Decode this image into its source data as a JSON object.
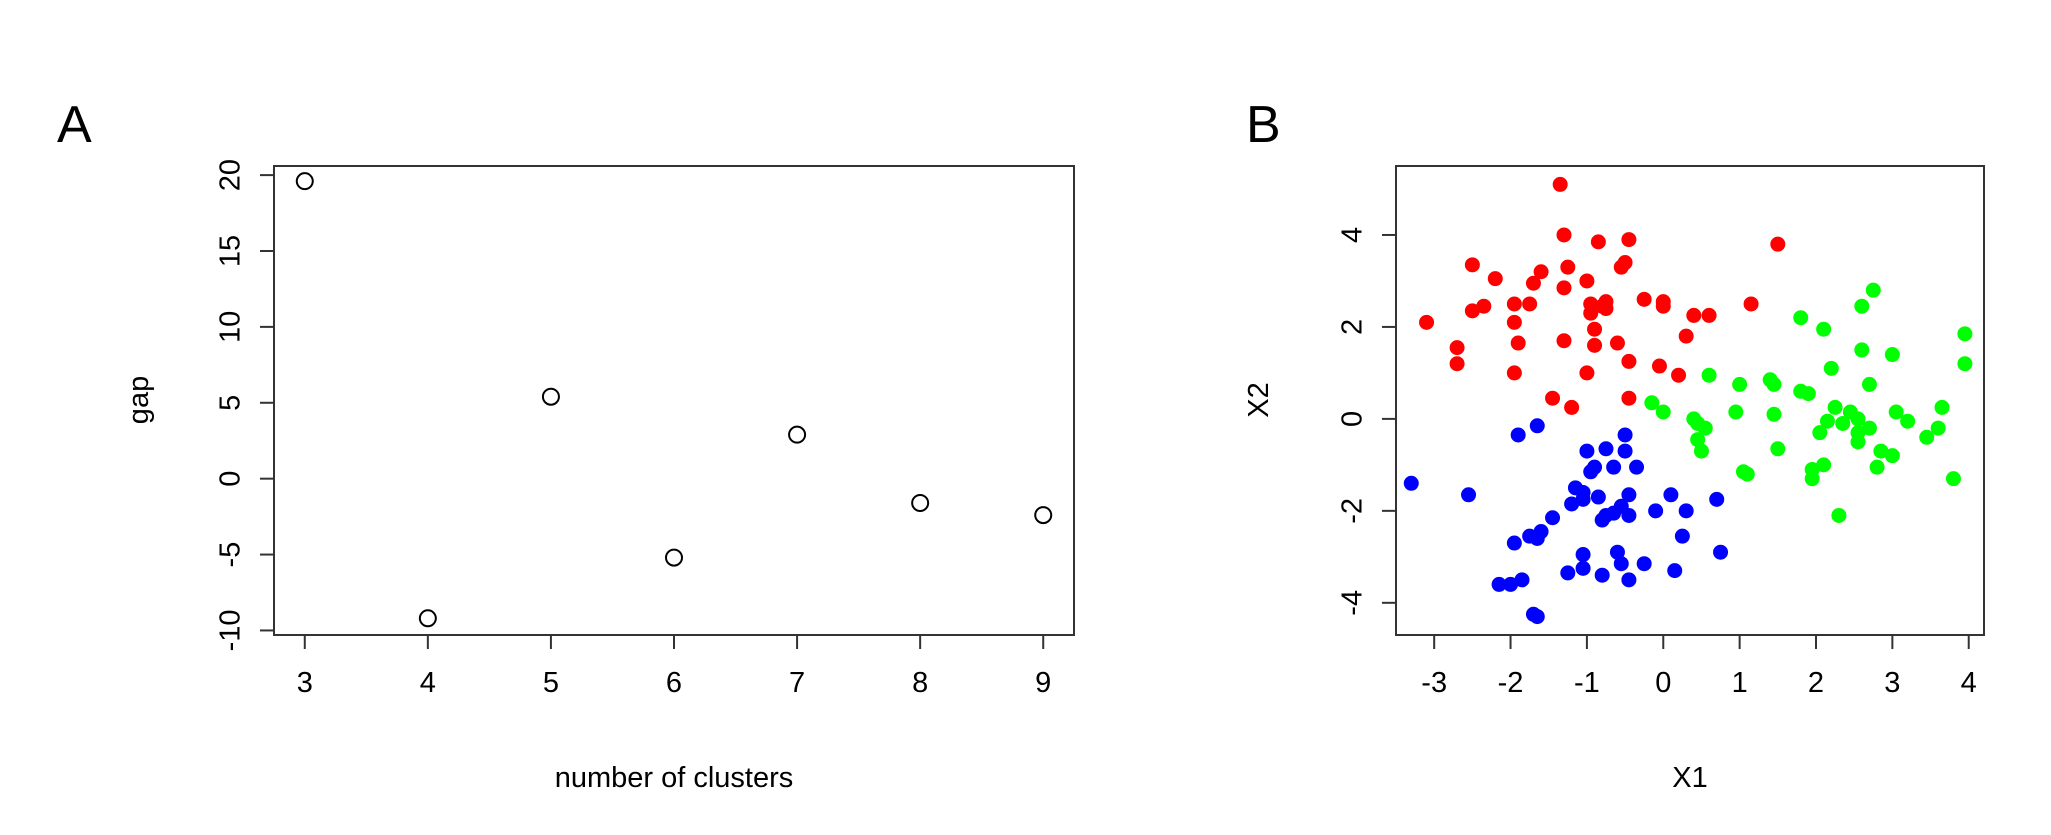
{
  "chart_data": [
    {
      "panel": "A",
      "type": "scatter",
      "xlabel": "number of clusters",
      "ylabel": "gap",
      "xticks": [
        3,
        4,
        5,
        6,
        7,
        8,
        9
      ],
      "yticks": [
        -10,
        -5,
        0,
        5,
        10,
        15,
        20
      ],
      "xlim": [
        2.75,
        9.25
      ],
      "ylim": [
        -10.3,
        20.6
      ],
      "marker": "open-circle",
      "color": "#000000",
      "x": [
        3,
        4,
        5,
        6,
        7,
        8,
        9
      ],
      "y": [
        19.6,
        -9.2,
        5.4,
        -5.2,
        2.9,
        -1.6,
        -2.4
      ]
    },
    {
      "panel": "B",
      "type": "scatter",
      "xlabel": "X1",
      "ylabel": "X2",
      "xticks": [
        -3,
        -2,
        -1,
        0,
        1,
        2,
        3,
        4
      ],
      "yticks": [
        -4,
        -2,
        0,
        2,
        4
      ],
      "xlim": [
        -3.5,
        4.2
      ],
      "ylim": [
        -4.7,
        5.5
      ],
      "marker": "filled-circle",
      "series": [
        {
          "color": "#ff0000",
          "points": [
            [
              -3.1,
              2.1
            ],
            [
              -2.7,
              1.55
            ],
            [
              -2.7,
              1.2
            ],
            [
              -2.5,
              3.35
            ],
            [
              -2.5,
              2.35
            ],
            [
              -2.35,
              2.45
            ],
            [
              -2.2,
              3.05
            ],
            [
              -1.95,
              2.5
            ],
            [
              -1.95,
              2.1
            ],
            [
              -1.9,
              1.65
            ],
            [
              -1.95,
              1.0
            ],
            [
              -1.75,
              2.5
            ],
            [
              -1.7,
              2.95
            ],
            [
              -1.6,
              3.2
            ],
            [
              -1.45,
              0.45
            ],
            [
              -1.35,
              5.1
            ],
            [
              -1.3,
              4.0
            ],
            [
              -1.3,
              2.85
            ],
            [
              -1.3,
              1.7
            ],
            [
              -1.25,
              3.3
            ],
            [
              -1.2,
              0.25
            ],
            [
              -1.0,
              3.0
            ],
            [
              -1.0,
              1.0
            ],
            [
              -0.95,
              2.5
            ],
            [
              -0.95,
              2.3
            ],
            [
              -0.9,
              1.95
            ],
            [
              -0.9,
              1.6
            ],
            [
              -0.85,
              3.85
            ],
            [
              -0.8,
              2.45
            ],
            [
              -0.75,
              2.55
            ],
            [
              -0.75,
              2.4
            ],
            [
              -0.6,
              1.65
            ],
            [
              -0.55,
              3.3
            ],
            [
              -0.5,
              3.4
            ],
            [
              -0.45,
              3.9
            ],
            [
              -0.45,
              1.25
            ],
            [
              -0.45,
              0.45
            ],
            [
              -0.25,
              2.6
            ],
            [
              -0.05,
              1.15
            ],
            [
              0.0,
              2.45
            ],
            [
              0.0,
              2.55
            ],
            [
              0.2,
              0.95
            ],
            [
              0.3,
              1.8
            ],
            [
              0.4,
              2.25
            ],
            [
              0.6,
              2.25
            ],
            [
              1.15,
              2.5
            ],
            [
              1.5,
              3.8
            ]
          ]
        },
        {
          "color": "#00ff00",
          "points": [
            [
              -0.15,
              0.35
            ],
            [
              0.0,
              0.15
            ],
            [
              0.4,
              0.0
            ],
            [
              0.45,
              -0.1
            ],
            [
              0.45,
              -0.45
            ],
            [
              0.5,
              -0.7
            ],
            [
              0.55,
              -0.2
            ],
            [
              0.6,
              0.95
            ],
            [
              0.95,
              0.15
            ],
            [
              1.0,
              0.75
            ],
            [
              1.05,
              -1.15
            ],
            [
              1.1,
              -1.2
            ],
            [
              1.4,
              0.85
            ],
            [
              1.45,
              0.75
            ],
            [
              1.45,
              0.1
            ],
            [
              1.5,
              -0.65
            ],
            [
              1.8,
              2.2
            ],
            [
              1.8,
              0.6
            ],
            [
              1.9,
              0.55
            ],
            [
              1.95,
              -1.3
            ],
            [
              1.95,
              -1.1
            ],
            [
              2.05,
              -0.3
            ],
            [
              2.1,
              1.95
            ],
            [
              2.1,
              -1.0
            ],
            [
              2.15,
              -0.05
            ],
            [
              2.2,
              1.1
            ],
            [
              2.25,
              0.25
            ],
            [
              2.3,
              -2.1
            ],
            [
              2.35,
              -0.1
            ],
            [
              2.45,
              0.15
            ],
            [
              2.55,
              0.0
            ],
            [
              2.55,
              -0.5
            ],
            [
              2.55,
              -0.3
            ],
            [
              2.6,
              1.5
            ],
            [
              2.6,
              2.45
            ],
            [
              2.7,
              0.75
            ],
            [
              2.7,
              -0.2
            ],
            [
              2.75,
              2.8
            ],
            [
              2.8,
              -1.05
            ],
            [
              2.85,
              -0.7
            ],
            [
              3.0,
              1.4
            ],
            [
              3.0,
              -0.8
            ],
            [
              3.05,
              0.15
            ],
            [
              3.2,
              -0.05
            ],
            [
              3.45,
              -0.4
            ],
            [
              3.6,
              -0.2
            ],
            [
              3.65,
              0.25
            ],
            [
              3.8,
              -1.3
            ],
            [
              3.95,
              1.85
            ],
            [
              3.95,
              1.2
            ]
          ]
        },
        {
          "color": "#0000ff",
          "points": [
            [
              -3.3,
              -1.4
            ],
            [
              -2.55,
              -1.65
            ],
            [
              -2.15,
              -3.6
            ],
            [
              -2.0,
              -3.6
            ],
            [
              -1.95,
              -2.7
            ],
            [
              -1.9,
              -0.35
            ],
            [
              -1.85,
              -3.5
            ],
            [
              -1.75,
              -2.55
            ],
            [
              -1.7,
              -4.25
            ],
            [
              -1.65,
              -4.3
            ],
            [
              -1.65,
              -2.6
            ],
            [
              -1.65,
              -0.15
            ],
            [
              -1.6,
              -2.45
            ],
            [
              -1.45,
              -2.15
            ],
            [
              -1.25,
              -3.35
            ],
            [
              -1.2,
              -1.85
            ],
            [
              -1.15,
              -1.5
            ],
            [
              -1.05,
              -1.6
            ],
            [
              -1.05,
              -1.75
            ],
            [
              -1.05,
              -3.25
            ],
            [
              -1.05,
              -2.95
            ],
            [
              -1.0,
              -0.7
            ],
            [
              -0.95,
              -1.15
            ],
            [
              -0.9,
              -1.05
            ],
            [
              -0.85,
              -1.7
            ],
            [
              -0.8,
              -3.4
            ],
            [
              -0.8,
              -2.2
            ],
            [
              -0.75,
              -0.65
            ],
            [
              -0.75,
              -2.1
            ],
            [
              -0.65,
              -2.05
            ],
            [
              -0.65,
              -1.05
            ],
            [
              -0.6,
              -2.9
            ],
            [
              -0.55,
              -1.9
            ],
            [
              -0.55,
              -3.15
            ],
            [
              -0.5,
              -0.35
            ],
            [
              -0.5,
              -0.7
            ],
            [
              -0.45,
              -1.65
            ],
            [
              -0.45,
              -2.1
            ],
            [
              -0.45,
              -3.5
            ],
            [
              -0.35,
              -1.05
            ],
            [
              -0.25,
              -3.15
            ],
            [
              -0.1,
              -2.0
            ],
            [
              0.1,
              -1.65
            ],
            [
              0.15,
              -3.3
            ],
            [
              0.25,
              -2.55
            ],
            [
              0.3,
              -2.0
            ],
            [
              0.7,
              -1.75
            ],
            [
              0.75,
              -2.9
            ]
          ]
        }
      ]
    }
  ],
  "panels": {
    "a_label": "A",
    "b_label": "B"
  }
}
